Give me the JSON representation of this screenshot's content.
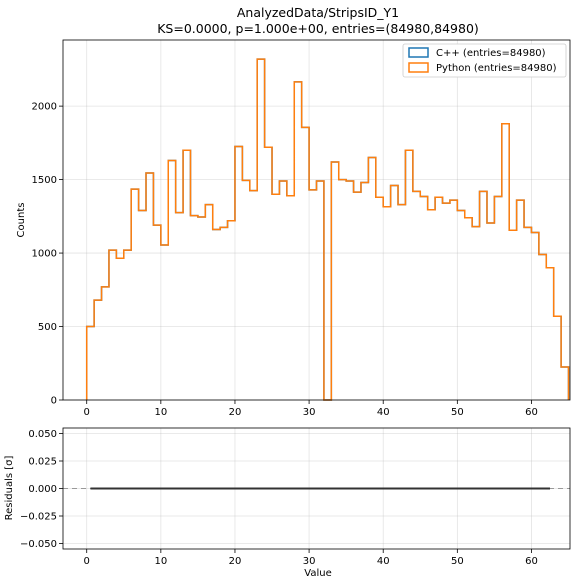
{
  "chart_data": [
    {
      "type": "histogram",
      "title": "AnalyzedData/StripsID_Y1",
      "subtitle": "KS=0.0000, p=1.000e+00, entries=(84980,84980)",
      "xlabel": "",
      "ylabel": "Counts",
      "xlim": [
        -3.2,
        65.2
      ],
      "ylim": [
        0,
        2450
      ],
      "xticks": [
        "0",
        "10",
        "20",
        "30",
        "40",
        "50",
        "60"
      ],
      "yticks": [
        "0",
        "500",
        "1000",
        "1500",
        "2000"
      ],
      "grid": true,
      "legend_position": "top-right",
      "bin_edges_start": 0,
      "bin_width": 1,
      "series": [
        {
          "name": "C++ (entries=84980)",
          "color": "#1f77b4",
          "values": [
            500,
            680,
            770,
            1020,
            965,
            1020,
            1435,
            1290,
            1545,
            1190,
            1055,
            1630,
            1275,
            1700,
            1255,
            1245,
            1330,
            1160,
            1175,
            1220,
            1725,
            1495,
            1425,
            2320,
            1720,
            1400,
            1490,
            1390,
            2165,
            1855,
            1430,
            1490,
            0,
            1620,
            1500,
            1490,
            1415,
            1480,
            1650,
            1380,
            1315,
            1460,
            1330,
            1700,
            1420,
            1385,
            1295,
            1380,
            1340,
            1360,
            1290,
            1240,
            1180,
            1420,
            1205,
            1385,
            1880,
            1155,
            1360,
            1175,
            1140,
            990,
            900,
            570,
            225
          ]
        },
        {
          "name": "Python (entries=84980)",
          "color": "#ff7f0e",
          "values": [
            500,
            680,
            770,
            1020,
            965,
            1020,
            1435,
            1290,
            1545,
            1190,
            1055,
            1630,
            1275,
            1700,
            1255,
            1245,
            1330,
            1160,
            1175,
            1220,
            1725,
            1495,
            1425,
            2320,
            1720,
            1400,
            1490,
            1390,
            2165,
            1855,
            1430,
            1490,
            0,
            1620,
            1500,
            1490,
            1415,
            1480,
            1650,
            1380,
            1315,
            1460,
            1330,
            1700,
            1420,
            1385,
            1295,
            1380,
            1340,
            1360,
            1290,
            1240,
            1180,
            1420,
            1205,
            1385,
            1880,
            1155,
            1360,
            1175,
            1140,
            990,
            900,
            570,
            225
          ]
        }
      ]
    },
    {
      "type": "line",
      "title": "",
      "xlabel": "Value",
      "ylabel": "Residuals [σ]",
      "xlim": [
        -3.2,
        65.2
      ],
      "ylim": [
        -0.055,
        0.055
      ],
      "xticks": [
        "0",
        "10",
        "20",
        "30",
        "40",
        "50",
        "60"
      ],
      "yticks": [
        "0.050",
        "0.025",
        "0.000",
        "−0.025",
        "−0.050"
      ],
      "grid": true,
      "reference_line": 0,
      "series": [
        {
          "x": [
            0.5,
            62.5
          ],
          "y": [
            0,
            0
          ],
          "color": "#333333"
        }
      ]
    }
  ]
}
